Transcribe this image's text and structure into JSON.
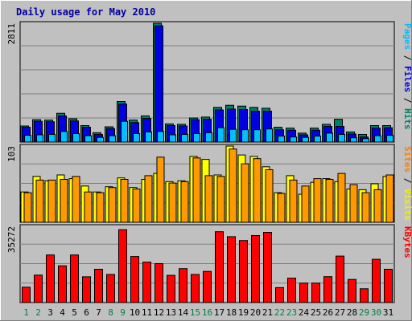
{
  "chart_data": {
    "type": "bar",
    "title": "Daily usage for May 2010",
    "categories": [
      "1",
      "2",
      "3",
      "4",
      "5",
      "6",
      "7",
      "8",
      "9",
      "10",
      "11",
      "12",
      "13",
      "14",
      "15",
      "16",
      "17",
      "18",
      "19",
      "20",
      "21",
      "22",
      "23",
      "24",
      "25",
      "26",
      "27",
      "28",
      "29",
      "30",
      "31"
    ],
    "weekend_days": [
      "1",
      "2",
      "8",
      "9",
      "15",
      "16",
      "22",
      "23",
      "29",
      "30"
    ],
    "panels": [
      {
        "ymax_label": "2811",
        "ylabel_parts": [
          "Pages",
          "Files",
          "Hits"
        ],
        "ylabel_colors": [
          "#00c0ff",
          "#0000e0",
          "#008060"
        ],
        "ymax": 2811,
        "series": [
          {
            "name": "Hits",
            "color": "#008060",
            "values": [
              380,
              530,
              520,
              680,
              550,
              390,
              220,
              360,
              960,
              520,
              620,
              2811,
              430,
              420,
              570,
              590,
              820,
              870,
              850,
              820,
              800,
              350,
              330,
              210,
              330,
              420,
              540,
              240,
              180,
              390,
              390
            ]
          },
          {
            "name": "Files",
            "color": "#0000e0",
            "values": [
              350,
              490,
              480,
              620,
              500,
              350,
              180,
              320,
              900,
              460,
              560,
              2750,
              390,
              380,
              530,
              540,
              760,
              780,
              770,
              730,
              730,
              290,
              280,
              170,
              280,
              370,
              370,
              190,
              120,
              330,
              340
            ]
          },
          {
            "name": "Pages",
            "color": "#00c0ff",
            "values": [
              160,
              170,
              180,
              250,
              200,
              150,
              110,
              150,
              490,
              200,
              240,
              250,
              170,
              180,
              200,
              220,
              340,
              300,
              290,
              290,
              310,
              140,
              120,
              110,
              140,
              210,
              180,
              100,
              80,
              150,
              160
            ]
          }
        ]
      },
      {
        "ymax_label": "103",
        "ylabel_parts": [
          "Sites",
          "Visits"
        ],
        "ylabel_colors": [
          "#ff8000",
          "#f0f000"
        ],
        "ymax": 103,
        "series": [
          {
            "name": "Visits",
            "color": "#ffff00",
            "values": [
              41,
              62,
              56,
              64,
              59,
              49,
              41,
              48,
              60,
              47,
              58,
              66,
              55,
              56,
              89,
              85,
              64,
              103,
              91,
              89,
              75,
              40,
              63,
              38,
              54,
              59,
              55,
              45,
              44,
              52,
              62
            ]
          },
          {
            "name": "Sites",
            "color": "#ff9900",
            "values": [
              40,
              57,
              57,
              58,
              62,
              41,
              40,
              47,
              58,
              45,
              63,
              88,
              53,
              55,
              87,
              63,
              62,
              99,
              79,
              86,
              71,
              39,
              57,
              49,
              59,
              58,
              66,
              51,
              40,
              44,
              64
            ]
          }
        ]
      },
      {
        "ymax_label": "35272",
        "ylabel_parts": [
          "KBytes"
        ],
        "ylabel_colors": [
          "#ff0000"
        ],
        "ymax": 35272,
        "series": [
          {
            "name": "KBytes",
            "color": "#ff0000",
            "values": [
              7100,
              12700,
              22000,
              17000,
              22000,
              11900,
              15400,
              13000,
              33700,
              21300,
              18700,
              18000,
              12600,
              15700,
              13000,
              14400,
              32800,
              30500,
              28700,
              31000,
              32500,
              6900,
              11300,
              9000,
              9000,
              12000,
              21500,
              10700,
              6400,
              20000,
              15400
            ]
          }
        ]
      }
    ]
  }
}
